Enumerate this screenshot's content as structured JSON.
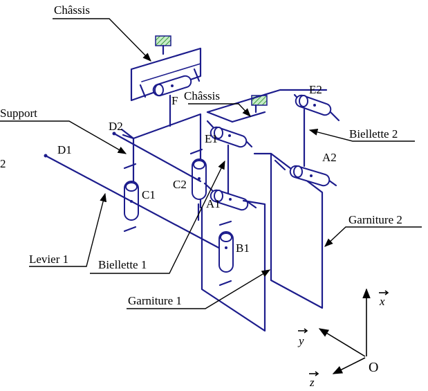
{
  "labels": {
    "chassis_top": "Châssis",
    "chassis_mid": "Châssis",
    "support": "Support",
    "levier2_partial": "2",
    "d1": "D1",
    "d2": "D2",
    "f": "F",
    "e1": "E1",
    "e2": "E2",
    "c1": "C1",
    "c2": "C2",
    "a1": "A1",
    "a2": "A2",
    "b1": "B1",
    "biellette2": "Biellette 2",
    "garniture2": "Garniture 2",
    "levier1": "Levier 1",
    "biellette1": "Biellette 1",
    "garniture1": "Garniture 1"
  },
  "axes": {
    "x": "x",
    "y": "y",
    "z": "z",
    "origin": "O"
  },
  "colors": {
    "mechanism": "#1c1c8c",
    "hatch": "#8fd18f",
    "leader": "#000000"
  }
}
